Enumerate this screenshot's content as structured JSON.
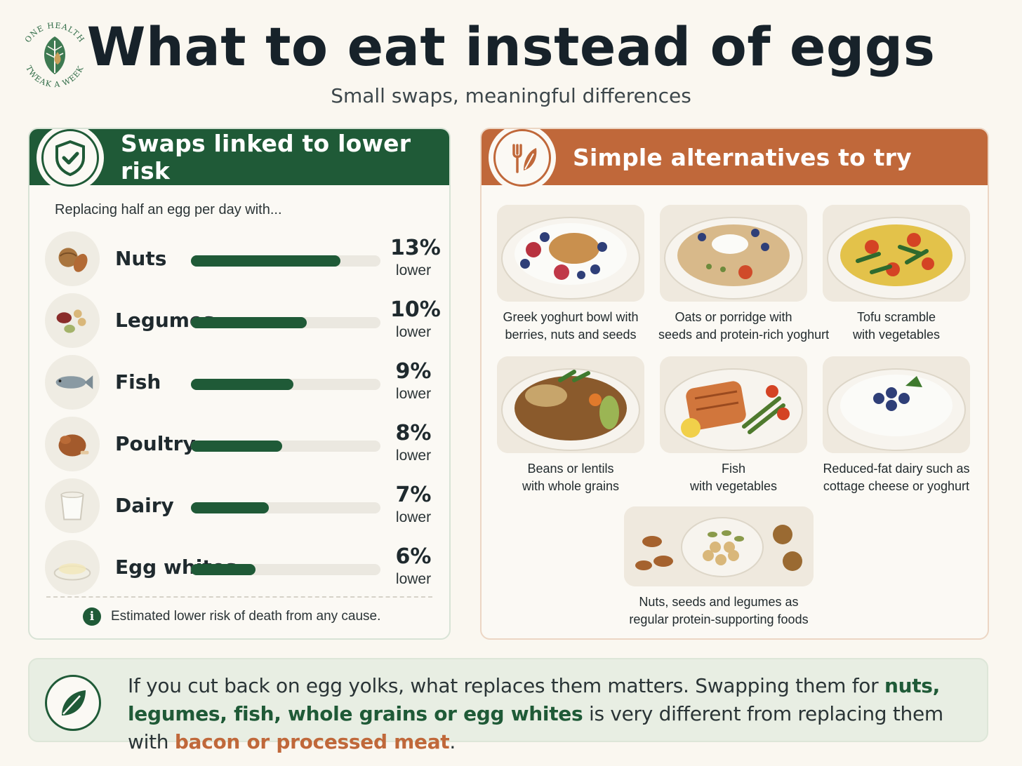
{
  "header": {
    "title": "What to eat instead of eggs",
    "subtitle": "Small swaps, meaningful differences",
    "logo_text": "ONE HEALTH TWEAK A WEEK"
  },
  "left_panel": {
    "title": "Swaps linked to lower risk",
    "intro": "Replacing half an egg per day with...",
    "lower_label": "lower",
    "rows": [
      {
        "label": "Nuts",
        "pct": "13%",
        "fill": 0.79,
        "icon": "nuts-icon"
      },
      {
        "label": "Legumes",
        "pct": "10%",
        "fill": 0.61,
        "icon": "legumes-icon"
      },
      {
        "label": "Fish",
        "pct": "9%",
        "fill": 0.54,
        "icon": "fish-icon"
      },
      {
        "label": "Poultry",
        "pct": "8%",
        "fill": 0.48,
        "icon": "poultry-icon"
      },
      {
        "label": "Dairy",
        "pct": "7%",
        "fill": 0.41,
        "icon": "dairy-icon"
      },
      {
        "label": "Egg whites",
        "pct": "6%",
        "fill": 0.34,
        "icon": "egg-whites-icon"
      }
    ],
    "footnote": "Estimated lower risk of death from any cause."
  },
  "right_panel": {
    "title": "Simple alternatives to try",
    "cards": [
      {
        "lines": [
          "Greek yoghurt bowl with",
          "berries, nuts and seeds"
        ],
        "icon": "yoghurt-bowl-image"
      },
      {
        "lines": [
          "Oats or porridge with",
          "seeds and protein-rich yoghurt"
        ],
        "icon": "porridge-image"
      },
      {
        "lines": [
          "Tofu scramble",
          "with vegetables"
        ],
        "icon": "tofu-scramble-image"
      },
      {
        "lines": [
          "Beans or lentils",
          "with whole grains"
        ],
        "icon": "lentil-bowl-image"
      },
      {
        "lines": [
          "Fish",
          "with vegetables"
        ],
        "icon": "salmon-plate-image"
      },
      {
        "lines": [
          "Reduced-fat dairy such as",
          "cottage cheese or yoghurt"
        ],
        "icon": "cottage-cheese-image"
      },
      {
        "lines": [
          "Nuts, seeds and legumes as",
          "regular protein-supporting foods"
        ],
        "icon": "nuts-seeds-image"
      }
    ]
  },
  "banner": {
    "part1": "If you cut back on egg yolks, what replaces them matters. Swapping them for ",
    "highlight_green": "nuts, legumes, fish, whole grains or egg whites",
    "part2": " is very different from replacing them with ",
    "highlight_orange": "bacon or processed meat",
    "part3": "."
  },
  "colors": {
    "green": "#1f5a37",
    "orange": "#c0683a",
    "background": "#faf7f0"
  }
}
